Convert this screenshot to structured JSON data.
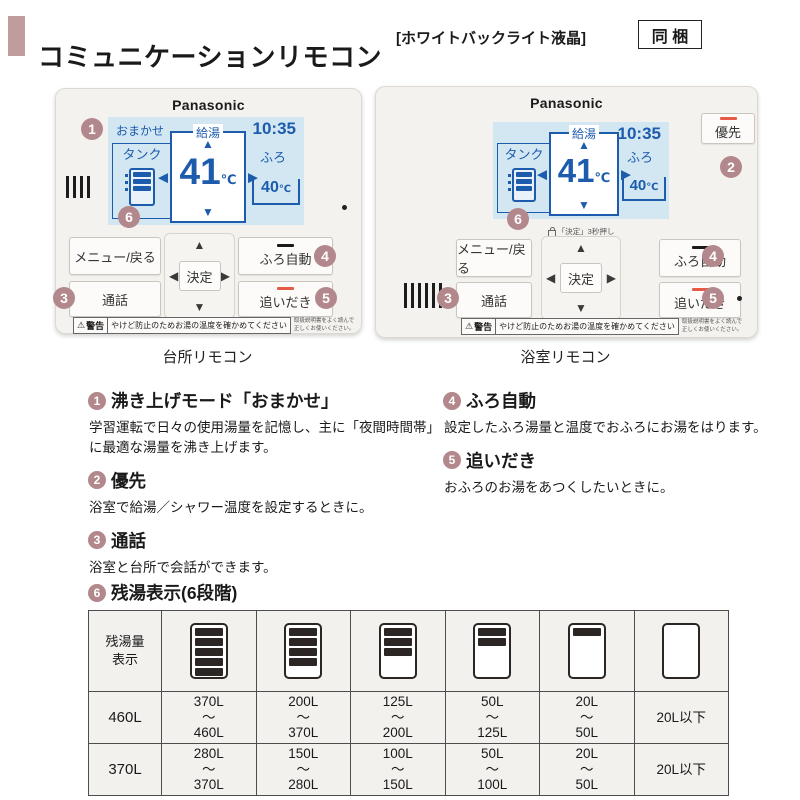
{
  "header": {
    "title": "コミュニケーションリモコン",
    "subtitle": "[ホワイトバックライト液晶]",
    "badge": "同 梱"
  },
  "icons": {
    "up": "▲",
    "down": "▼",
    "left": "◀",
    "right": "▶",
    "warning": "⚠"
  },
  "kitchen": {
    "brand": "Panasonic",
    "caption": "台所リモコン",
    "lcd": {
      "mode": "おまかせ",
      "time": "10:35",
      "tank_label": "タンク",
      "supply_label": "給湯",
      "supply_temp": "41",
      "supply_unit": "℃",
      "bath_label": "ふろ",
      "bath_temp": "40",
      "bath_unit": "℃"
    },
    "buttons": {
      "menu": "メニュー/戻る",
      "call": "通話",
      "enter": "決定",
      "bath_auto": "ふろ自動",
      "reheat": "追いだき"
    }
  },
  "bathroom": {
    "brand": "Panasonic",
    "caption": "浴室リモコン",
    "priority": "優先",
    "lock_hint": "「決定」3秒押し",
    "lcd": {
      "time": "10:35",
      "tank_label": "タンク",
      "supply_label": "給湯",
      "supply_temp": "41",
      "supply_unit": "℃",
      "bath_label": "ふろ",
      "bath_temp": "40",
      "bath_unit": "℃"
    },
    "buttons": {
      "menu": "メニュー/戻る",
      "call": "通話",
      "enter": "決定",
      "bath_auto": "ふろ自動",
      "reheat": "追いだき"
    }
  },
  "warning": {
    "label": "警告",
    "text": "やけど防止のためお湯の温度を確かめてください",
    "notice": "取扱説明書をよく読んで\n正しくお使いください。"
  },
  "markers": [
    "1",
    "2",
    "3",
    "4",
    "5",
    "6"
  ],
  "features": [
    {
      "num": "1",
      "title": "沸き上げモード「おまかせ」",
      "desc": "学習運転で日々の使用湯量を記憶し、主に「夜間時間帯」に最適な湯量を沸き上げます。"
    },
    {
      "num": "2",
      "title": "優先",
      "desc": "浴室で給湯／シャワー温度を設定するときに。"
    },
    {
      "num": "3",
      "title": "通話",
      "desc": "浴室と台所で会話ができます。"
    },
    {
      "num": "4",
      "title": "ふろ自動",
      "desc": "設定したふろ湯量と温度でおふろにお湯をはります。"
    },
    {
      "num": "5",
      "title": "追いだき",
      "desc": "おふろのお湯をあつくしたいときに。"
    }
  ],
  "tank_table": {
    "num": "6",
    "title": "残湯表示(6段階)",
    "corner": "残湯量\n表示",
    "levels": [
      5,
      4,
      3,
      2,
      1,
      0
    ],
    "rows": [
      {
        "label": "460L",
        "cells": [
          "370L\n〜\n460L",
          "200L\n〜\n370L",
          "125L\n〜\n200L",
          "50L\n〜\n125L",
          "20L\n〜\n50L",
          "20L以下"
        ]
      },
      {
        "label": "370L",
        "cells": [
          "280L\n〜\n370L",
          "150L\n〜\n280L",
          "100L\n〜\n150L",
          "50L\n〜\n100L",
          "20L\n〜\n50L",
          "20L以下"
        ]
      }
    ]
  },
  "colors": {
    "accent_rose": "#c09c9c",
    "marker_rose": "#b2888c",
    "lcd_blue": "#1d5bad",
    "lcd_bg": "#d3e7f3",
    "alert_red": "#e55b47"
  }
}
